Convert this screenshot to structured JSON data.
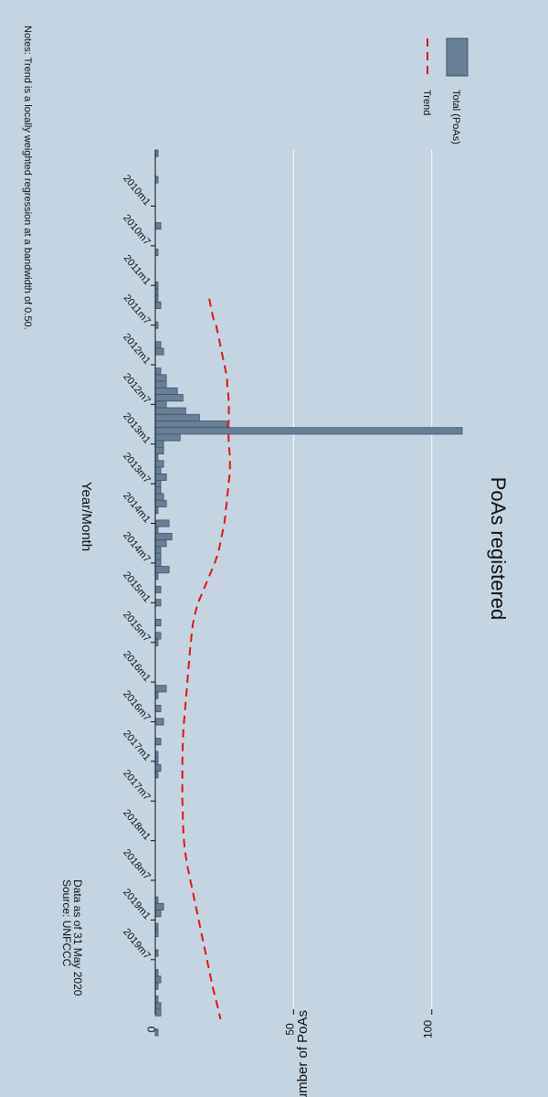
{
  "chart_data": {
    "type": "bar",
    "orientation": "rotated-90-clockwise",
    "title": "PoAs registered",
    "xlabel": "Year/Month",
    "ylabel": "Number of PoAs",
    "ylim": [
      0,
      110
    ],
    "yticks": [
      0,
      50,
      100
    ],
    "x_tick_labels": [
      "2010m1",
      "2010m7",
      "2011m1",
      "2011m7",
      "2012m1",
      "2012m7",
      "2013m1",
      "2013m7",
      "2014m1",
      "2014m7",
      "2015m1",
      "2015m7",
      "2016m1",
      "2016m7",
      "2017m1",
      "2017m7",
      "2018m1",
      "2018m7",
      "2019m1",
      "2019m7"
    ],
    "x_start": "2009m5",
    "x_end": "2020m2",
    "series": [
      {
        "name": "Total (PoAs)",
        "color": "#687f96",
        "values": [
          1,
          0,
          0,
          0,
          1,
          0,
          0,
          0,
          0,
          0,
          0,
          2,
          0,
          0,
          0,
          1,
          0,
          0,
          0,
          0,
          1,
          1,
          1,
          2,
          0,
          0,
          1,
          0,
          0,
          2,
          3,
          0,
          0,
          2,
          4,
          4,
          8,
          10,
          4,
          11,
          16,
          26,
          111,
          9,
          3,
          3,
          1,
          3,
          2,
          4,
          2,
          2,
          3,
          4,
          1,
          0,
          5,
          1,
          6,
          4,
          2,
          2,
          2,
          5,
          1,
          0,
          2,
          0,
          2,
          0,
          0,
          2,
          0,
          2,
          1,
          0,
          0,
          0,
          0,
          0,
          0,
          4,
          1,
          0,
          2,
          0,
          3,
          0,
          0,
          2,
          0,
          1,
          1,
          2,
          1,
          0,
          0,
          0,
          0,
          0,
          0,
          0,
          0,
          0,
          0,
          0,
          0,
          0,
          0,
          0,
          0,
          0,
          0,
          1,
          3,
          2,
          0,
          1,
          1,
          0,
          0,
          1,
          0,
          0,
          1,
          2,
          1,
          0,
          1,
          2,
          2,
          0,
          0,
          1
        ]
      },
      {
        "name": "Trend",
        "color": "#e01818",
        "style": "dashed",
        "start": "2011m3",
        "values": [
          19.5,
          20,
          20.5,
          21,
          22,
          22.5,
          23,
          23.5,
          24,
          24.5,
          25,
          25.5,
          26,
          26,
          26.3,
          26.5,
          26.6,
          26.6,
          26.6,
          26.5,
          26.5,
          26.5,
          26.6,
          26.8,
          27,
          27,
          27,
          26.8,
          26.5,
          26.3,
          26,
          25.8,
          25.5,
          25.3,
          25,
          24.5,
          24,
          23.5,
          23,
          22.3,
          21.5,
          20.5,
          19.5,
          18.5,
          17.5,
          16.5,
          15.5,
          14.8,
          14.2,
          13.7,
          13.4,
          13.1,
          12.9,
          12.6,
          12.4,
          12.2,
          12,
          11.8,
          11.6,
          11.4,
          11.2,
          11,
          10.8,
          10.6,
          10.4,
          10.2,
          10.1,
          10,
          9.9,
          9.9,
          9.8,
          9.8,
          9.8,
          9.8,
          9.8,
          9.8,
          9.8,
          9.9,
          10,
          10,
          10.1,
          10.2,
          10.4,
          10.6,
          10.9,
          11.3,
          11.7,
          12.2,
          12.7,
          13.2,
          13.7,
          14.2,
          14.7,
          15.2,
          15.7,
          16.2,
          16.7,
          17.2,
          17.7,
          18.2,
          18.7,
          19.2,
          19.7,
          20.2,
          20.7,
          21.3,
          21.9,
          22.5,
          23,
          23.6
        ]
      }
    ],
    "legend": {
      "position": "top-right",
      "entries": [
        "Total (PoAs)",
        "Trend"
      ]
    },
    "grid": true
  },
  "notes": {
    "data_date": "Data as of 31 May 2020",
    "source": "Source: UNFCCC",
    "trend_note": "Notes: Trend is a locally weighted regression at a bandwidth of 0.50."
  }
}
